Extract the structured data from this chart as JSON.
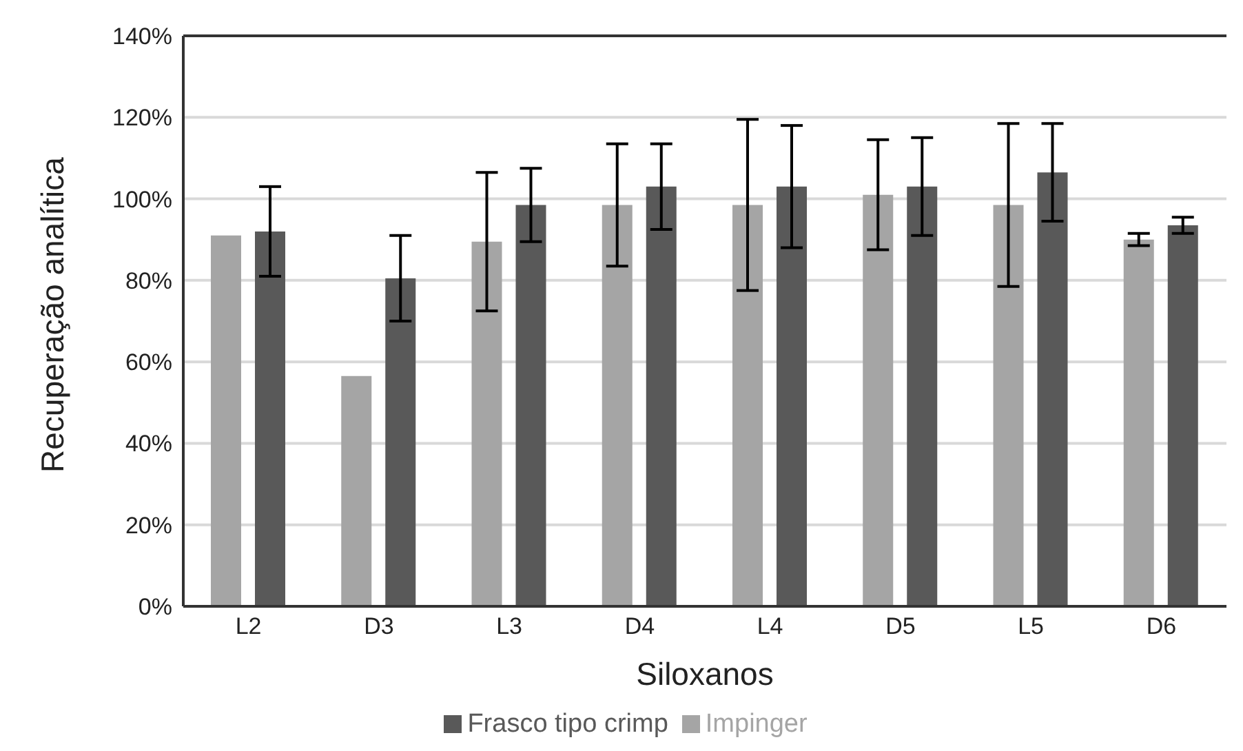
{
  "chart_data": {
    "type": "bar",
    "xlabel": "Siloxanos",
    "ylabel": "Recuperação analítica",
    "categories": [
      "L2",
      "D3",
      "L3",
      "D4",
      "L4",
      "D5",
      "L5",
      "D6"
    ],
    "series": [
      {
        "name": "Impinger",
        "color": "#a5a5a5",
        "values": [
          91,
          56.5,
          89.5,
          98.5,
          98.5,
          101,
          98.5,
          90
        ],
        "errors": [
          0,
          0,
          17,
          15,
          21,
          13.5,
          20,
          1.5
        ]
      },
      {
        "name": "Frasco tipo crimp",
        "color": "#595959",
        "values": [
          92,
          80.5,
          98.5,
          103,
          103,
          103,
          106.5,
          93.5
        ],
        "errors": [
          11,
          10.5,
          9,
          10.5,
          15,
          12,
          12,
          2
        ]
      }
    ],
    "ylim": [
      0,
      140
    ],
    "yticks": [
      {
        "value": 0,
        "label": "0%"
      },
      {
        "value": 20,
        "label": "20%"
      },
      {
        "value": 40,
        "label": "40%"
      },
      {
        "value": 60,
        "label": "60%"
      },
      {
        "value": 80,
        "label": "80%"
      },
      {
        "value": 100,
        "label": "100%"
      },
      {
        "value": 120,
        "label": "120%"
      },
      {
        "value": 140,
        "label": "140%"
      }
    ],
    "grid": "y",
    "legend": "bottom"
  }
}
